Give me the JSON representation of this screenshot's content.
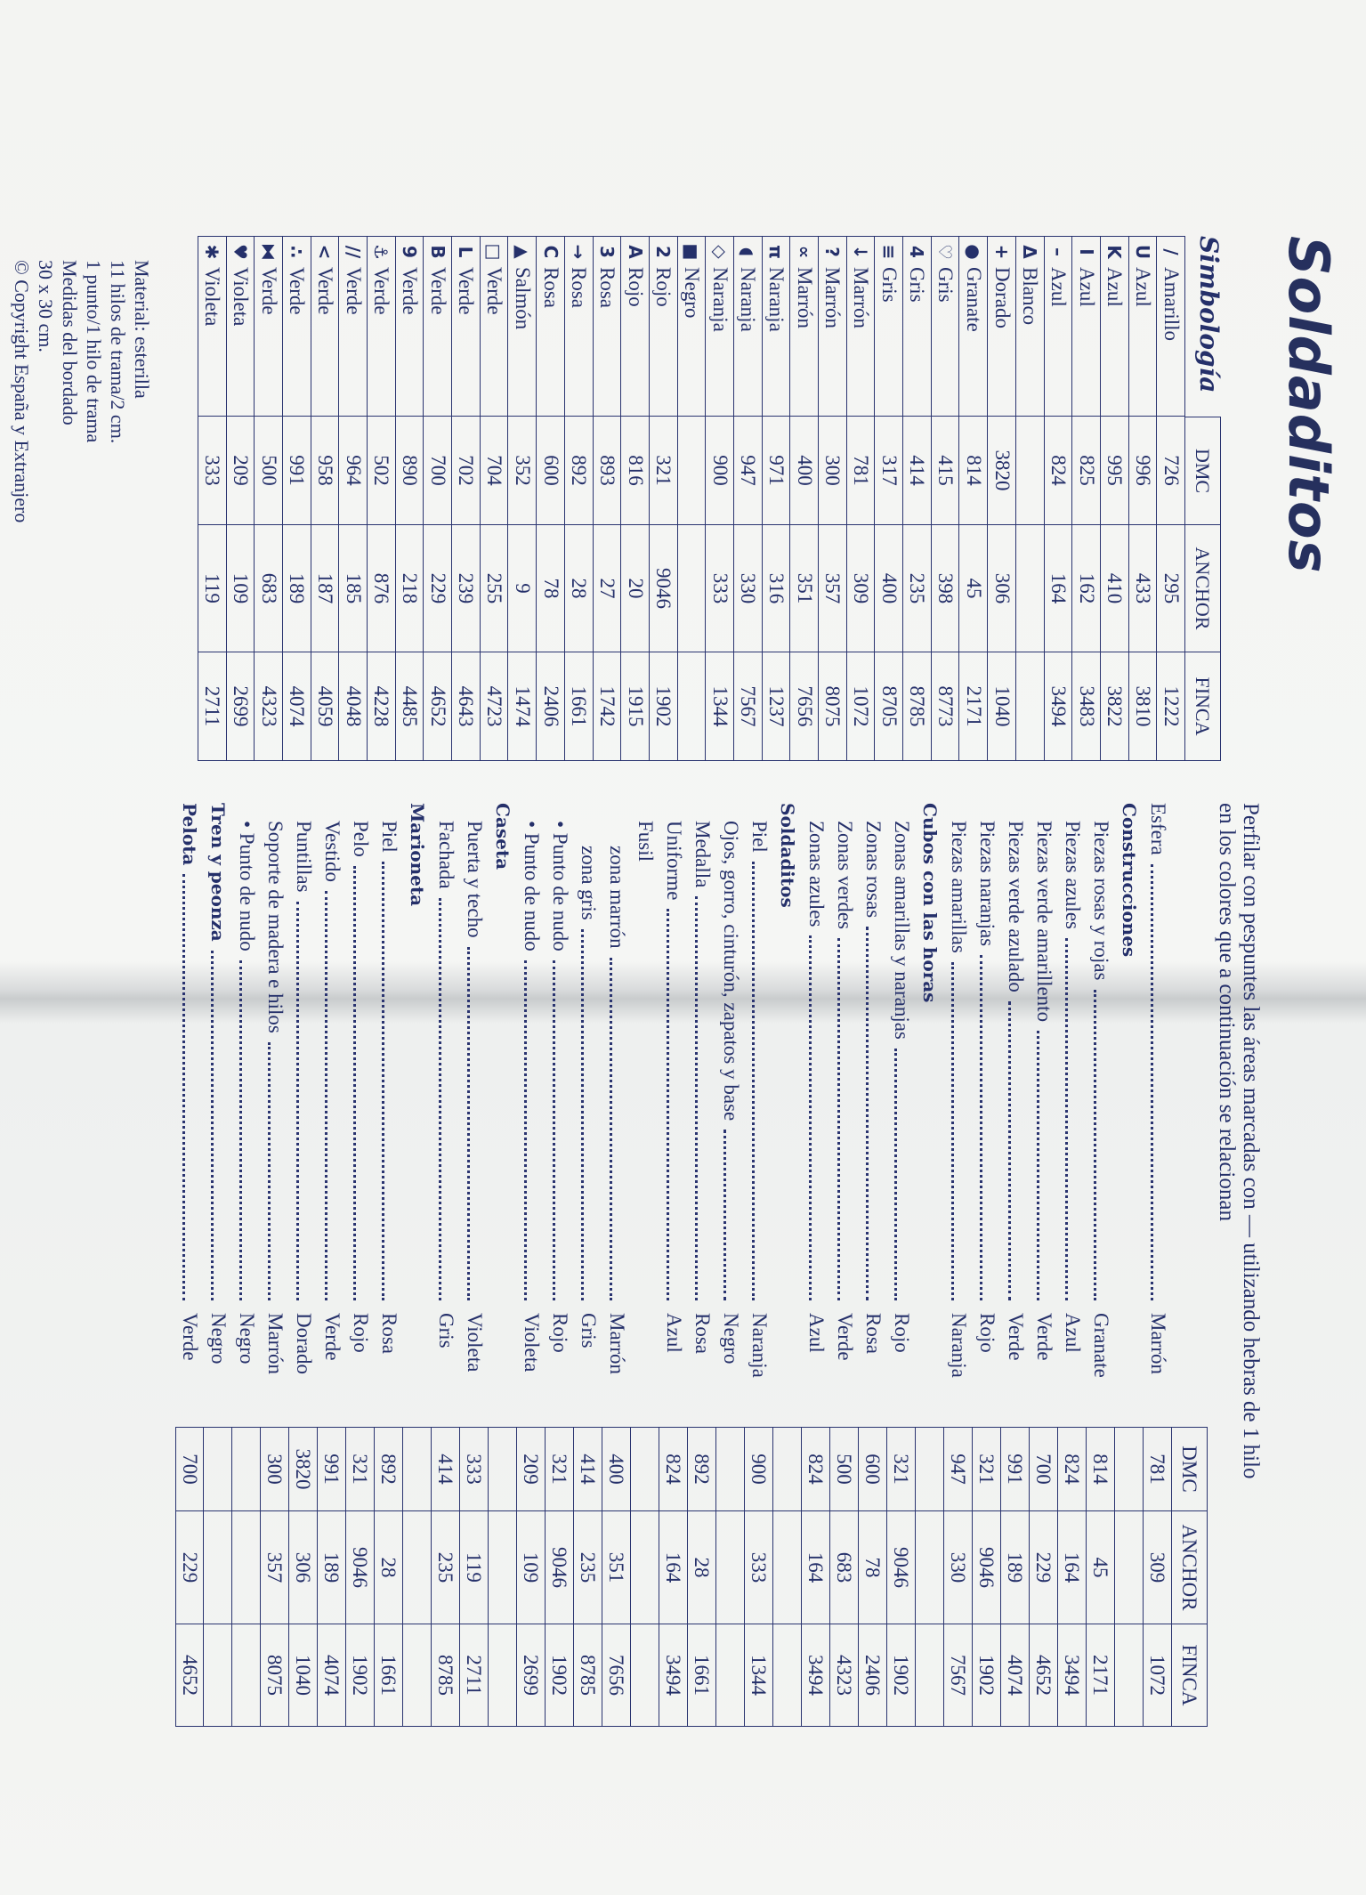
{
  "title": "Soldaditos",
  "symbology": {
    "heading": "Simbología",
    "columns": [
      "DMC",
      "ANCHOR",
      "FINCA"
    ],
    "rows": [
      {
        "symbol": "/",
        "color": "Amarillo",
        "dmc": "726",
        "anchor": "295",
        "finca": "1222"
      },
      {
        "symbol": "U",
        "color": "Azul",
        "dmc": "996",
        "anchor": "433",
        "finca": "3810"
      },
      {
        "symbol": "K",
        "color": "Azul",
        "dmc": "995",
        "anchor": "410",
        "finca": "3822"
      },
      {
        "symbol": "I",
        "color": "Azul",
        "dmc": "825",
        "anchor": "162",
        "finca": "3483"
      },
      {
        "symbol": "–",
        "color": "Azul",
        "dmc": "824",
        "anchor": "164",
        "finca": "3494"
      },
      {
        "symbol": "Δ",
        "color": "Blanco",
        "dmc": "",
        "anchor": "",
        "finca": ""
      },
      {
        "symbol": "+",
        "color": "Dorado",
        "dmc": "3820",
        "anchor": "306",
        "finca": "1040"
      },
      {
        "symbol": "●",
        "color": "Granate",
        "dmc": "814",
        "anchor": "45",
        "finca": "2171"
      },
      {
        "symbol": "♡",
        "color": "Gris",
        "dmc": "415",
        "anchor": "398",
        "finca": "8773"
      },
      {
        "symbol": "4",
        "color": "Gris",
        "dmc": "414",
        "anchor": "235",
        "finca": "8785"
      },
      {
        "symbol": "≡",
        "color": "Gris",
        "dmc": "317",
        "anchor": "400",
        "finca": "8705"
      },
      {
        "symbol": "↓",
        "color": "Marrón",
        "dmc": "781",
        "anchor": "309",
        "finca": "1072"
      },
      {
        "symbol": "?",
        "color": "Marrón",
        "dmc": "300",
        "anchor": "357",
        "finca": "8075"
      },
      {
        "symbol": "∝",
        "color": "Marrón",
        "dmc": "400",
        "anchor": "351",
        "finca": "7656"
      },
      {
        "symbol": "π",
        "color": "Naranja",
        "dmc": "971",
        "anchor": "316",
        "finca": "1237"
      },
      {
        "symbol": "◖",
        "color": "Naranja",
        "dmc": "947",
        "anchor": "330",
        "finca": "7567"
      },
      {
        "symbol": "◇",
        "color": "Naranja",
        "dmc": "900",
        "anchor": "333",
        "finca": "1344"
      },
      {
        "symbol": "■",
        "color": "Negro",
        "dmc": "",
        "anchor": "",
        "finca": ""
      },
      {
        "symbol": "2",
        "color": "Rojo",
        "dmc": "321",
        "anchor": "9046",
        "finca": "1902"
      },
      {
        "symbol": "A",
        "color": "Rojo",
        "dmc": "816",
        "anchor": "20",
        "finca": "1915"
      },
      {
        "symbol": "3",
        "color": "Rosa",
        "dmc": "893",
        "anchor": "27",
        "finca": "1742"
      },
      {
        "symbol": "→",
        "color": "Rosa",
        "dmc": "892",
        "anchor": "28",
        "finca": "1661"
      },
      {
        "symbol": "C",
        "color": "Rosa",
        "dmc": "600",
        "anchor": "78",
        "finca": "2406"
      },
      {
        "symbol": "▲",
        "color": "Salmón",
        "dmc": "352",
        "anchor": "9",
        "finca": "1474"
      },
      {
        "symbol": "□",
        "color": "Verde",
        "dmc": "704",
        "anchor": "255",
        "finca": "4723"
      },
      {
        "symbol": "L",
        "color": "Verde",
        "dmc": "702",
        "anchor": "239",
        "finca": "4643"
      },
      {
        "symbol": "B",
        "color": "Verde",
        "dmc": "700",
        "anchor": "229",
        "finca": "4652"
      },
      {
        "symbol": "9",
        "color": "Verde",
        "dmc": "890",
        "anchor": "218",
        "finca": "4485"
      },
      {
        "symbol": "⚓",
        "color": "Verde",
        "dmc": "502",
        "anchor": "876",
        "finca": "4228"
      },
      {
        "symbol": "//",
        "color": "Verde",
        "dmc": "964",
        "anchor": "185",
        "finca": "4048"
      },
      {
        "symbol": "<",
        "color": "Verde",
        "dmc": "958",
        "anchor": "187",
        "finca": "4059"
      },
      {
        "symbol": "∴",
        "color": "Verde",
        "dmc": "991",
        "anchor": "189",
        "finca": "4074"
      },
      {
        "symbol": "⧓",
        "color": "Verde",
        "dmc": "500",
        "anchor": "683",
        "finca": "4323"
      },
      {
        "symbol": "♥",
        "color": "Violeta",
        "dmc": "209",
        "anchor": "109",
        "finca": "2699"
      },
      {
        "symbol": "✱",
        "color": "Violeta",
        "dmc": "333",
        "anchor": "119",
        "finca": "2711"
      }
    ]
  },
  "material_notes": [
    "Material: esterilla",
    "11 hilos de trama/2 cm.",
    "1 punto/1 hilo de trama",
    "Medidas del bordado",
    "30 x 30 cm."
  ],
  "copyright": "© Copyright España y Extranjero",
  "outline": {
    "intro": [
      "Perfilar con pespuntes las áreas marcadas con — utilizando hebras de 1 hilo",
      "en los colores que a continuación se relacionan"
    ],
    "columns": [
      "DMC",
      "ANCHOR",
      "FINCA"
    ],
    "rows": [
      {
        "label": "Esfera",
        "level": 0,
        "heading": false,
        "color": "Marrón",
        "dmc": "781",
        "anchor": "309",
        "finca": "1072"
      },
      {
        "label": "Construcciones",
        "level": 0,
        "heading": true,
        "color": "",
        "dmc": "",
        "anchor": "",
        "finca": ""
      },
      {
        "label": "Piezas rosas y rojas",
        "level": 1,
        "heading": false,
        "color": "Granate",
        "dmc": "814",
        "anchor": "45",
        "finca": "2171"
      },
      {
        "label": "Piezas azules",
        "level": 1,
        "heading": false,
        "color": "Azul",
        "dmc": "824",
        "anchor": "164",
        "finca": "3494"
      },
      {
        "label": "Piezas verde amarillento",
        "level": 1,
        "heading": false,
        "color": "Verde",
        "dmc": "700",
        "anchor": "229",
        "finca": "4652"
      },
      {
        "label": "Piezas verde azulado",
        "level": 1,
        "heading": false,
        "color": "Verde",
        "dmc": "991",
        "anchor": "189",
        "finca": "4074"
      },
      {
        "label": "Piezas naranjas",
        "level": 1,
        "heading": false,
        "color": "Rojo",
        "dmc": "321",
        "anchor": "9046",
        "finca": "1902"
      },
      {
        "label": "Piezas amarillas",
        "level": 1,
        "heading": false,
        "color": "Naranja",
        "dmc": "947",
        "anchor": "330",
        "finca": "7567"
      },
      {
        "label": "Cubos con las horas",
        "level": 0,
        "heading": true,
        "color": "",
        "dmc": "",
        "anchor": "",
        "finca": ""
      },
      {
        "label": "Zonas amarillas y naranjas",
        "level": 1,
        "heading": false,
        "color": "Rojo",
        "dmc": "321",
        "anchor": "9046",
        "finca": "1902"
      },
      {
        "label": "Zonas rosas",
        "level": 1,
        "heading": false,
        "color": "Rosa",
        "dmc": "600",
        "anchor": "78",
        "finca": "2406"
      },
      {
        "label": "Zonas verdes",
        "level": 1,
        "heading": false,
        "color": "Verde",
        "dmc": "500",
        "anchor": "683",
        "finca": "4323"
      },
      {
        "label": "Zonas azules",
        "level": 1,
        "heading": false,
        "color": "Azul",
        "dmc": "824",
        "anchor": "164",
        "finca": "3494"
      },
      {
        "label": "Soldaditos",
        "level": 0,
        "heading": true,
        "color": "",
        "dmc": "",
        "anchor": "",
        "finca": ""
      },
      {
        "label": "Piel",
        "level": 1,
        "heading": false,
        "color": "Naranja",
        "dmc": "900",
        "anchor": "333",
        "finca": "1344"
      },
      {
        "label": "Ojos, gorro, cinturón, zapatos y base",
        "level": 1,
        "heading": false,
        "color": "Negro",
        "dmc": "",
        "anchor": "",
        "finca": ""
      },
      {
        "label": "Medalla",
        "level": 1,
        "heading": false,
        "color": "Rosa",
        "dmc": "892",
        "anchor": "28",
        "finca": "1661"
      },
      {
        "label": "Uniforme",
        "level": 1,
        "heading": false,
        "color": "Azul",
        "dmc": "824",
        "anchor": "164",
        "finca": "3494"
      },
      {
        "label": "Fusil",
        "level": 1,
        "heading": false,
        "color": "",
        "dmc": "",
        "anchor": "",
        "finca": ""
      },
      {
        "label": "zona marrón",
        "level": 2,
        "heading": false,
        "color": "Marrón",
        "dmc": "400",
        "anchor": "351",
        "finca": "7656"
      },
      {
        "label": "zona gris",
        "level": 2,
        "heading": false,
        "color": "Gris",
        "dmc": "414",
        "anchor": "235",
        "finca": "8785"
      },
      {
        "label": "• Punto de nudo",
        "level": 1,
        "heading": false,
        "color": "Rojo",
        "dmc": "321",
        "anchor": "9046",
        "finca": "1902"
      },
      {
        "label": "• Punto de nudo",
        "level": 1,
        "heading": false,
        "color": "Violeta",
        "dmc": "209",
        "anchor": "109",
        "finca": "2699"
      },
      {
        "label": "Caseta",
        "level": 0,
        "heading": true,
        "color": "",
        "dmc": "",
        "anchor": "",
        "finca": ""
      },
      {
        "label": "Puerta y techo",
        "level": 1,
        "heading": false,
        "color": "Violeta",
        "dmc": "333",
        "anchor": "119",
        "finca": "2711"
      },
      {
        "label": "Fachada",
        "level": 1,
        "heading": false,
        "color": "Gris",
        "dmc": "414",
        "anchor": "235",
        "finca": "8785"
      },
      {
        "label": "Marioneta",
        "level": 0,
        "heading": true,
        "color": "",
        "dmc": "",
        "anchor": "",
        "finca": ""
      },
      {
        "label": "Piel",
        "level": 1,
        "heading": false,
        "color": "Rosa",
        "dmc": "892",
        "anchor": "28",
        "finca": "1661"
      },
      {
        "label": "Pelo",
        "level": 1,
        "heading": false,
        "color": "Rojo",
        "dmc": "321",
        "anchor": "9046",
        "finca": "1902"
      },
      {
        "label": "Vestido",
        "level": 1,
        "heading": false,
        "color": "Verde",
        "dmc": "991",
        "anchor": "189",
        "finca": "4074"
      },
      {
        "label": "Puntillas",
        "level": 1,
        "heading": false,
        "color": "Dorado",
        "dmc": "3820",
        "anchor": "306",
        "finca": "1040"
      },
      {
        "label": "Soporte de madera e hilos",
        "level": 1,
        "heading": false,
        "color": "Marrón",
        "dmc": "300",
        "anchor": "357",
        "finca": "8075"
      },
      {
        "label": "• Punto de nudo",
        "level": 1,
        "heading": false,
        "color": "Negro",
        "dmc": "",
        "anchor": "",
        "finca": ""
      },
      {
        "label": "Tren y peonza",
        "level": 0,
        "heading": true,
        "color": "Negro",
        "dmc": "",
        "anchor": "",
        "finca": ""
      },
      {
        "label": "Pelota",
        "level": 0,
        "heading": true,
        "color": "Verde",
        "dmc": "700",
        "anchor": "229",
        "finca": "4652"
      }
    ]
  },
  "colors": {
    "ink": "#25306a",
    "paper": "#f2f3f1"
  }
}
